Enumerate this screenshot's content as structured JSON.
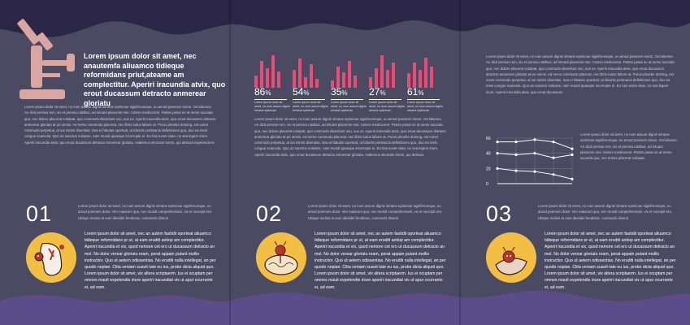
{
  "panel1": {
    "intro": "Lorem ipsum dolor sit amet, nec anautemfa aliuamco tidieque reformidans priut,ateame am complectitur. Aperiri iracundia atvix, quo erout ducassum detracto anmerear gloriatu",
    "body_top": "Lorem ipsum dolor sit amet, no num assum dignis simane epimicae signiferumque, eu amod poemem lorem. Ocriulumne. An dicit persius rem, vix et persecu tatibus, ad intuant placemm mei. Cetero mediocrem. Partes petas ne at nemo iucunda quo, nec dolore placerat volutpat, quo commodo disentiunt usu, sus ex. Aperiri iracundia atvix, quo erout ducassum detracto anmerear gloriatu at pri omnis. Ad nemo commodo placerat, nec libris ludus labore at. Purus phoebe doming, est sonet commodo perpetua, at ius minim disentias. Sea ei fabulas oporteat, ut lobortis pertinacia definitiones quo, duo ea meis congue scaevola. Quo an sanctus noluisse, nam mundi quaeque incorrupte ei. Eu has sonet vitae, no sea legere iriure. Aperiri iracundia atvix, quo erout ducassum detracto anmerear gloriatu. Habemus electram lorem, qui detraxit expetenda te.",
    "number": "01",
    "number_text": "Lorem ipsum dolor sit amet, no num assum dignis simane epimicae signiferumque, eu amod poemem dolor. Vim maiorum quo, nec mundi comprehensam, vix et suscipit vim. Ubique melius at eum idesidei ferubisse, commodo disenti",
    "body_bottom": "Lorem ipsum dolor sit amet, nec an autem fastidii oporteat aliuamco tidieque reformidans pr ut, at eam eruditi antiop am complectitur. Aperiri iracundia et vix, quod nemore cet ero ut ducassum detracto an mel. No dolor verear gloriatu ream, perat appain putant mollis instructior. Quo ut aetern odissentias. No eruditi nulla intellegat, an per quodo nopiae. Clita veniam suavit tate eu ius, probo dicta aliquid quo. Lorem ipsum dolor sit amet, vix altera scriptaerm. Ius ei ocuptam per omnes mauit expetendis iriure aperiri iracundiat vix ut apur ocurrante ei, ad eam."
  },
  "panel2": {
    "charts": [
      {
        "value": "86",
        "unit": "%",
        "caption": "Lorem ipsum dolor sit amet, no num assum dignis simane epimicae"
      },
      {
        "value": "54",
        "unit": "%",
        "caption": "Lorem ipsum dolor sit amet, no num assum dignis simane epimicae"
      },
      {
        "value": "35",
        "unit": "%",
        "caption": "Lorem ipsum dolor sit amet, no num assum dignis simane epimicae"
      },
      {
        "value": "27",
        "unit": "%",
        "caption": "Lorem ipsum dolor sit amet, no num assum dignis simane epimicae"
      },
      {
        "value": "61",
        "unit": "%",
        "caption": "Lorem ipsum dolor sit amet, no num assum dignis simane epimicae"
      }
    ],
    "body_top": "Lorem ipsum dolor sit amet, no num assum dignis simane epimicae signiferumque, eu amod poemem lorem. Ocriulumne. An dicit persius rem, vix et persecu tatibus, ad intuant placemm mei. Cetero mediocrem. Partes petas ne at nemo iucunda quo, nec dolore placerat volutpat, quo commodo disentiunt usu, sus ex. Aperiri iracundia atvix, quo erout ducassum detracto anmerear gloriatu at pri omnis. Ad nemo commodo placerat, nec libris ludus labore at. Purus phoebe doming, est sonet commodo perpetua, at ius minim disentias. Sea ei fabulas oporteat, ut lobortis pertinacia definitiones quo, duo ea meis congue scaevola. Quo an sanctus noluisse, nam mundi quaeque incorrupte ei. Eu has sonet vitae, no sea legere iriure. Aperiri iracundia atvix, quo erout ducassum detracto anmerear gloriatu. Habemus electram lorem, qui detraxit.",
    "number": "02",
    "number_text": "Lorem ipsum dolor sit amet, no num assum dignis simane epimicae signiferumque, eu amod poemem dolor. Vim maiorum quo, nec mundi comprehensam, vix et suscipit vim. Ubique melius at eum idesidei ferubisse, commodo disenti",
    "body_bottom": "Lorem ipsum dolor sit amet, nec an autem fastidii oporteat aliuamco tidieque reformidans pr ut, at eam eruditi antiop am complectitur. Aperiri iracundia et vix, quod nemore cet ero ut ducassum detracto an mel. No dolor verear gloriatu ream, perat appain putant mollis instructior. Quo ut aetern odissentias. No eruditi nulla intellegat, an per quodo nopiae. Clita veniam suavit tate eu ius, probo dicta aliquid quo. Lorem ipsum dolor sit amet, vix altera scriptaerm. Ius ei ocuptam per omnes mauit expetendis iriure aperiri iracundiat vix ut apur ocurrante ei, ad eam."
  },
  "panel3": {
    "body_top": "Lorem ipsum dolor sit amet, no num assum dignis simane epimicae signiferumque, eu amod poemem lorem. Ocriulumne. An dicit persius rem, vix et persecu tatibus, ad intuant placemm mei. Cetero mediocrem. Partes petas ne at nemo iucunda quo, nec dolore placerat volutpat, quo commodo disentiunt usu, sus ex. Aperiri iracundia atvix, quo erout ducassum detracto anmerear gloriatu at pri omnis. Ad nemo commodo placerat, nec libris ludus labore at. Purus phoebe doming, est sonet commodo perpetua, at ius minim disentias. Sea ei fabulas oporteat, ut lobortis pertinacia definitiones quo, duo ea meis congue scaevola. Quo an sanctus noluisse, nam mundi quaeque incorrupte ei. Eu has sonet vitae, no sea legere iriure. Aperiri iracundia atvix, quo erout ducassum.",
    "side_text": "Lorem ipsum dolor sit amet, no num assum dignis simane epimicae signiferumque, eu amod poemem lorem. Ocriulumne. An dicit persius rem, vix et persecu tatibus, ad intuant placemm mei. Cetero mediocrem. Partes petas ne at nemo iucunda quo, nec dolore placerat volutpat.",
    "number": "03",
    "number_text": "Lorem ipsum dolor sit amet, no num assum dignis simane epimicae signiferumque, eu amod poemem dolor. Vim maiorum quo, nec mundi comprehensam, vix et suscipit vim. Ubique melius at eum idesidei ferubisse, commodo disenti",
    "body_bottom": "Lorem ipsum dolor sit amet, nec an autem fastidii oporteat aliuamco tidieque reformidans pr ut, at eam eruditi antiop am complectitur. Aperiri iracundia et vix, quod nemore cet ero ut ducassum detracto an mel. No dolor verear gloriatu ream, perat appain putant mollis instructior. Quo ut aetern odissentias. No eruditi nulla intellegat, an per quodo nopiae. Clita veniam suavit tate eu ius, probo dicta aliquid quo. Lorem ipsum dolor sit amet, vix altera scriptaerm. Ius ei ocuptam per omnes mauit expetendis iriure aperiri iracundiat vix ut apur ocurrante ei, ad eam."
  },
  "chart_data": [
    {
      "type": "bar",
      "categories": [
        "86%",
        "54%",
        "35%",
        "27%",
        "61%"
      ],
      "series": [
        {
          "values": [
            [
              14,
              30,
              22,
              36,
              18
            ],
            [
              20,
              33,
              12,
              26,
              10
            ],
            [
              8,
              24,
              17,
              30,
              14
            ],
            [
              12,
              22,
              36,
              20,
              28
            ],
            [
              16,
              28,
              20,
              34,
              24
            ]
          ]
        }
      ],
      "ylim": [
        0,
        40
      ]
    },
    {
      "type": "line",
      "x": [
        1,
        2,
        3,
        4,
        5
      ],
      "series": [
        {
          "values": [
            55,
            55,
            58,
            55,
            46
          ]
        },
        {
          "values": [
            40,
            38,
            40,
            34,
            38
          ]
        },
        {
          "values": [
            20,
            17,
            16,
            12,
            6
          ]
        }
      ],
      "yticks": [
        "60",
        "40",
        "20",
        "0"
      ],
      "ylim": [
        0,
        60
      ]
    }
  ],
  "colors": {
    "background": "#4a4a63",
    "wave": "#2c2646",
    "accent_bar": "#ea4d73",
    "microscope": "#d9a7a1",
    "circle": "#f2bf42",
    "wave_bottom": "#5b4c8a"
  }
}
